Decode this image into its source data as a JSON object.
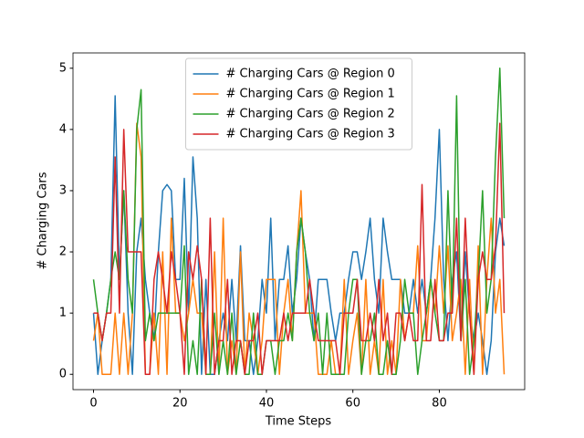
{
  "chart_data": {
    "type": "line",
    "xlabel": "Time Steps",
    "ylabel": "# Charging Cars",
    "x": [
      0,
      1,
      2,
      3,
      4,
      5,
      6,
      7,
      8,
      9,
      10,
      11,
      12,
      13,
      14,
      15,
      16,
      17,
      18,
      19,
      20,
      21,
      22,
      23,
      24,
      25,
      26,
      27,
      28,
      29,
      30,
      31,
      32,
      33,
      34,
      35,
      36,
      37,
      38,
      39,
      40,
      41,
      42,
      43,
      44,
      45,
      46,
      47,
      48,
      49,
      50,
      51,
      52,
      53,
      54,
      55,
      56,
      57,
      58,
      59,
      60,
      61,
      62,
      63,
      64,
      65,
      66,
      67,
      68,
      69,
      70,
      71,
      72,
      73,
      74,
      75,
      76,
      77,
      78,
      79,
      80,
      81,
      82,
      83,
      84,
      85,
      86,
      87,
      88,
      89,
      90,
      91,
      92,
      93,
      94,
      95
    ],
    "xlim": [
      -4.75,
      99.75
    ],
    "xticks": [
      0,
      20,
      40,
      60,
      80
    ],
    "ylim": [
      -0.25,
      5.25
    ],
    "yticks": [
      0,
      1,
      2,
      3,
      4,
      5
    ],
    "grid": false,
    "legend": "upper center",
    "series": [
      {
        "name": "# Charging Cars @ Region 0",
        "color": "#1f77b4",
        "values": [
          1,
          0,
          0.55,
          1,
          1.55,
          4.55,
          1.55,
          3,
          1,
          0,
          2,
          2.55,
          1.55,
          1,
          0.55,
          2,
          3,
          3.1,
          3,
          1.55,
          1.55,
          3.2,
          1,
          3.55,
          2.55,
          0,
          1.55,
          0,
          0,
          0.55,
          1,
          0.55,
          1.55,
          0.55,
          2.1,
          0.55,
          0.55,
          0,
          0.55,
          1.55,
          1,
          2.55,
          0.55,
          1.55,
          1.55,
          2.1,
          1,
          1.55,
          2.55,
          2,
          1.55,
          0.55,
          1.55,
          1.55,
          1.55,
          1,
          0.55,
          1,
          1,
          1.55,
          2,
          2,
          1.55,
          2,
          2.55,
          1.55,
          1,
          2.55,
          2,
          1.55,
          1.55,
          1.55,
          1,
          1,
          1.55,
          1,
          1.55,
          1,
          1.55,
          2.55,
          4,
          1.55,
          0.55,
          1.55,
          2,
          0.55,
          2,
          1,
          0.55,
          1,
          0.55,
          0,
          0.55,
          2,
          2.55,
          2.1
        ]
      },
      {
        "name": "# Charging Cars @ Region 1",
        "color": "#ff7f0e",
        "values": [
          0.55,
          1,
          0,
          0,
          0,
          1,
          0,
          1,
          0,
          1,
          4.1,
          3.55,
          0,
          0,
          1,
          0,
          2,
          0,
          2.55,
          1,
          1,
          0.55,
          1,
          1.55,
          1,
          1,
          0,
          0,
          2,
          0,
          2.55,
          0,
          0.55,
          0,
          2,
          0,
          1,
          0.55,
          0,
          0.55,
          1.55,
          1.55,
          1.55,
          0,
          1,
          1.55,
          0.55,
          2,
          3,
          1,
          1,
          1,
          0,
          0,
          0,
          0.55,
          0,
          0,
          1.55,
          0,
          0.55,
          1,
          0,
          1.55,
          0,
          0.55,
          0,
          1.55,
          0,
          0.55,
          0,
          1.55,
          0.55,
          1,
          1,
          2.1,
          0.55,
          0.55,
          1.55,
          1,
          2.1,
          1,
          2.1,
          0.55,
          1,
          1.55,
          0,
          1.55,
          0,
          2.1,
          0,
          1.55,
          2.55,
          1,
          1.55,
          0
        ]
      },
      {
        "name": "# Charging Cars @ Region 2",
        "color": "#2ca02c",
        "values": [
          1.55,
          1,
          0.55,
          1,
          1.55,
          2,
          1.55,
          3,
          1.55,
          1,
          4,
          4.65,
          0.55,
          1,
          0.55,
          1,
          1,
          1,
          1,
          1,
          1,
          2.1,
          0,
          0.55,
          0,
          1.55,
          0,
          0,
          1,
          0,
          0.55,
          0,
          1,
          0,
          0.55,
          0,
          0,
          1,
          0,
          0,
          0.55,
          0.55,
          0,
          0.55,
          0.55,
          1,
          0.55,
          2,
          2.55,
          2,
          1,
          0.55,
          1,
          0,
          1,
          0,
          0,
          0,
          0,
          1,
          1.55,
          1.55,
          0,
          0.55,
          0.55,
          1,
          0,
          0,
          0.55,
          0,
          0,
          0.55,
          1.55,
          1,
          1,
          0,
          0.55,
          1,
          1.55,
          1,
          0.55,
          0.55,
          3,
          1,
          4.55,
          0.55,
          1.55,
          0,
          0.55,
          1.55,
          3,
          1,
          1.55,
          3.55,
          5,
          2.55
        ]
      },
      {
        "name": "# Charging Cars @ Region 3",
        "color": "#d62728",
        "values": [
          1,
          1,
          0.55,
          1,
          1,
          3.55,
          1,
          4,
          2,
          2,
          2,
          2,
          0,
          0,
          1.55,
          2,
          1.55,
          1,
          2,
          1.55,
          1,
          0,
          2,
          1.55,
          2.1,
          1.55,
          0,
          2.55,
          0,
          0.55,
          0.55,
          1.55,
          0,
          0.55,
          0.55,
          0,
          0.55,
          0.55,
          1,
          0,
          0.55,
          0.55,
          0.55,
          0.55,
          1,
          0.55,
          1,
          1,
          1,
          1,
          1.55,
          1,
          0.55,
          0.55,
          0.55,
          0.55,
          0.55,
          0,
          1,
          1,
          1,
          1.55,
          0.55,
          0.55,
          1,
          0.55,
          1.55,
          0.55,
          1,
          0,
          1,
          1,
          0.55,
          1,
          0.55,
          0.55,
          3.1,
          0.55,
          0.55,
          1.55,
          0.55,
          0.55,
          1,
          1,
          2.55,
          0.55,
          2.55,
          1,
          0,
          1.55,
          2,
          1.55,
          1.55,
          2.1,
          4.1,
          1
        ]
      }
    ]
  }
}
